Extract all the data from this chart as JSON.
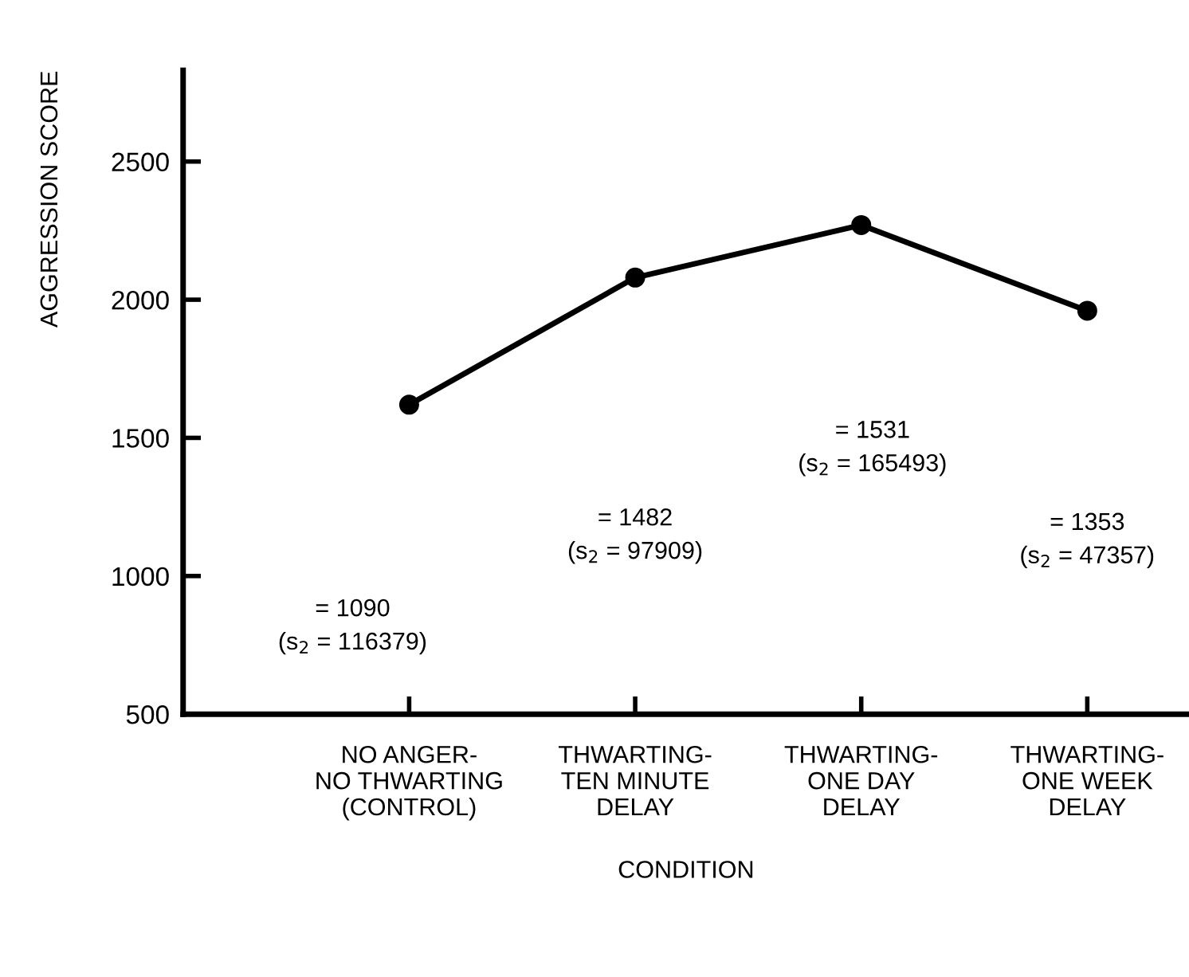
{
  "chart_data": {
    "type": "line",
    "xlabel": "CONDITION",
    "ylabel": "AGGRESSION SCORE",
    "categories": [
      "NO ANGER-\nNO THWARTING\n(CONTROL)",
      "THWARTING-\nTEN MINUTE\nDELAY",
      "THWARTING-\nONE DAY\nDELAY",
      "THWARTING-\nONE WEEK\nDELAY"
    ],
    "series": [
      {
        "color": "#000000",
        "values": [
          1620,
          2080,
          2270,
          1960
        ]
      }
    ],
    "marker": "circle",
    "line_style": "solid",
    "grid": false,
    "legend": false,
    "ylim": [
      500,
      2830
    ],
    "yticks": [
      500,
      1000,
      1500,
      2000,
      2500
    ],
    "annotations": [
      "= 1090\n(s$_{2}$ = 116379)",
      "= 1482\n(s$_{2}$ = 97909)",
      "= 1531\n(s$_{2}$ = 165493)",
      "= 1353\n(s$_{2}$ = 47357)"
    ]
  }
}
